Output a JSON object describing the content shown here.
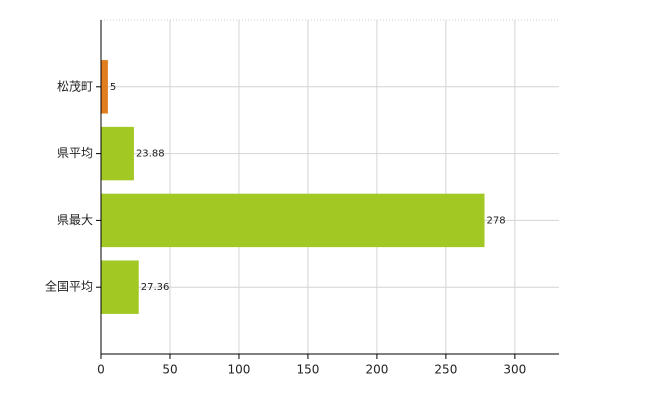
{
  "chart_data": {
    "type": "bar",
    "orientation": "horizontal",
    "categories": [
      "松茂町",
      "県平均",
      "県最大",
      "全国平均"
    ],
    "values": [
      5,
      23.88,
      278,
      27.36
    ],
    "colors": [
      "#e07d1e",
      "#a2c824",
      "#a2c824",
      "#a2c824"
    ],
    "xlim": [
      0,
      332
    ],
    "xticks": [
      0,
      50,
      100,
      150,
      200,
      250,
      300
    ],
    "grid": true
  }
}
